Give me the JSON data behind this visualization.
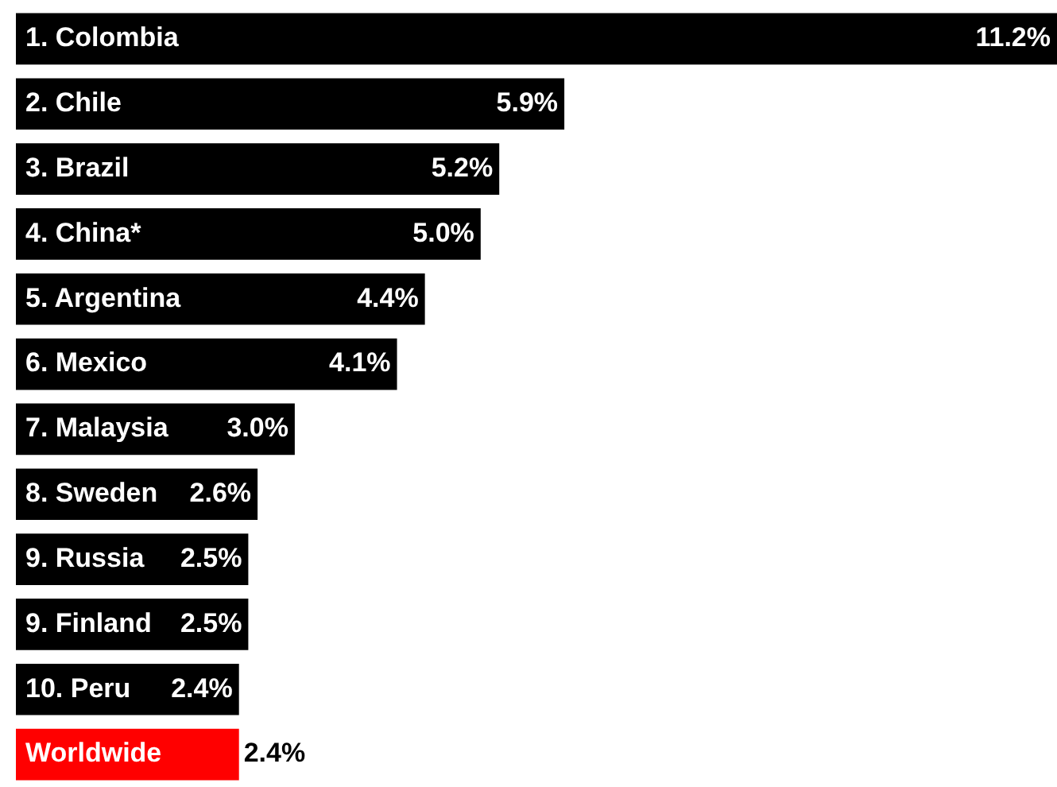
{
  "chart_data": {
    "type": "bar",
    "orientation": "horizontal",
    "categories": [
      "1. Colombia",
      "2. Chile",
      "3. Brazil",
      "4. China*",
      "5. Argentina",
      "6. Mexico",
      "7. Malaysia",
      "8. Sweden",
      "9. Russia",
      "9. Finland",
      "10. Peru",
      "Worldwide"
    ],
    "values": [
      11.2,
      5.9,
      5.2,
      5.0,
      4.4,
      4.1,
      3.0,
      2.6,
      2.5,
      2.5,
      2.4,
      2.4
    ],
    "colors": [
      "#000000",
      "#000000",
      "#000000",
      "#000000",
      "#000000",
      "#000000",
      "#000000",
      "#000000",
      "#000000",
      "#000000",
      "#000000",
      "#ff0000"
    ],
    "value_labels": [
      "11.2%",
      "5.9%",
      "5.2%",
      "5.0%",
      "4.4%",
      "4.1%",
      "3.0%",
      "2.6%",
      "2.5%",
      "2.5%",
      "2.4%",
      "2.4%"
    ]
  }
}
